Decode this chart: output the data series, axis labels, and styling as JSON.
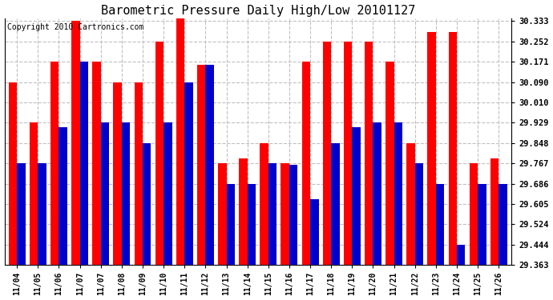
{
  "title": "Barometric Pressure Daily High/Low 20101127",
  "copyright": "Copyright 2010 Cartronics.com",
  "dates": [
    "11/04",
    "11/05",
    "11/06",
    "11/07",
    "11/07",
    "11/08",
    "11/09",
    "11/10",
    "11/11",
    "11/12",
    "11/13",
    "11/14",
    "11/15",
    "11/16",
    "11/17",
    "11/18",
    "11/19",
    "11/20",
    "11/21",
    "11/22",
    "11/23",
    "11/24",
    "11/25",
    "11/26"
  ],
  "highs": [
    30.09,
    29.929,
    30.171,
    30.333,
    30.171,
    30.09,
    30.09,
    30.252,
    30.36,
    30.16,
    29.767,
    29.786,
    29.848,
    29.767,
    30.171,
    30.252,
    30.252,
    30.252,
    30.171,
    29.848,
    30.29,
    30.29,
    29.767,
    29.786
  ],
  "lows": [
    29.767,
    29.767,
    29.91,
    30.171,
    29.929,
    29.929,
    29.848,
    29.929,
    30.09,
    30.16,
    29.686,
    29.686,
    29.767,
    29.76,
    29.624,
    29.848,
    29.91,
    29.929,
    29.929,
    29.767,
    29.686,
    29.444,
    29.686,
    29.686
  ],
  "ylim_min": 29.363,
  "ylim_max": 30.333,
  "yticks": [
    29.363,
    29.444,
    29.524,
    29.605,
    29.686,
    29.767,
    29.848,
    29.929,
    30.01,
    30.09,
    30.171,
    30.252,
    30.333
  ],
  "bar_color_high": "#FF0000",
  "bar_color_low": "#0000CC",
  "background_color": "#FFFFFF",
  "grid_color": "#C0C0C0",
  "title_fontsize": 11,
  "copyright_fontsize": 7
}
